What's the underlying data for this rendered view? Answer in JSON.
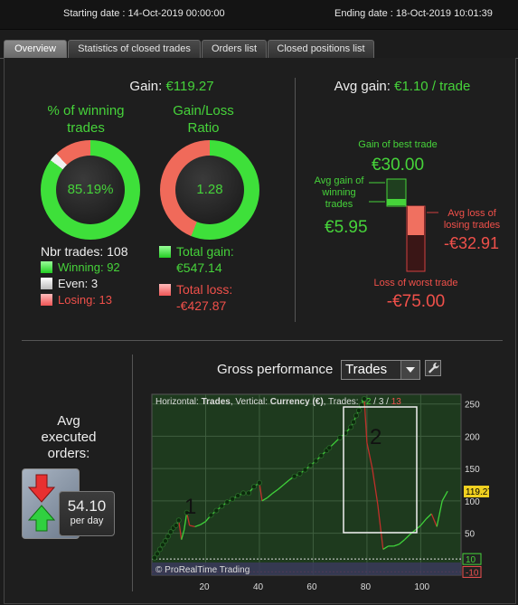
{
  "header": {
    "starting_date": "Starting date : 14-Oct-2019 00:00:00",
    "ending_date": "Ending date : 18-Oct-2019 10:01:39"
  },
  "tabs": [
    {
      "label": "Overview",
      "active": true
    },
    {
      "label": "Statistics of closed trades",
      "active": false
    },
    {
      "label": "Orders list",
      "active": false
    },
    {
      "label": "Closed positions list",
      "active": false
    }
  ],
  "overview": {
    "gain_label": "Gain:",
    "gain_value": "€119.27",
    "winning_title_1": "% of winning",
    "winning_title_2": "trades",
    "winning_pct": "85.19%",
    "winning_fraction": 0.8519,
    "even_fraction": 0.0278,
    "ratio_title_1": "Gain/Loss",
    "ratio_title_2": "Ratio",
    "ratio_value": "1.28",
    "ratio_gain_fraction": 0.561,
    "nbr_trades": "Nbr trades: 108",
    "winning": "Winning: 92",
    "even": "Even: 3",
    "losing": "Losing: 13",
    "total_gain_label": "Total gain:",
    "total_gain_value": "€547.14",
    "total_loss_label": "Total loss:",
    "total_loss_value": "-€427.87"
  },
  "avg_panel": {
    "avg_gain_label": "Avg gain:",
    "avg_gain_value": "€1.10 / trade",
    "best_trade_label": "Gain of best trade",
    "best_trade_value": "€30.00",
    "avg_win_label_1": "Avg gain of",
    "avg_win_label_2": "winning",
    "avg_win_label_3": "trades",
    "avg_win_value": "€5.95",
    "avg_loss_label_1": "Avg loss of",
    "avg_loss_label_2": "losing trades",
    "avg_loss_value": "-€32.91",
    "worst_trade_label": "Loss of worst trade",
    "worst_trade_value": "-€75.00"
  },
  "orders": {
    "title_1": "Avg",
    "title_2": "executed",
    "title_3": "orders:",
    "value": "54.10",
    "unit": "per day"
  },
  "performance": {
    "title": "Gross performance",
    "selected": "Trades",
    "info_horizontal": "Horizontal:",
    "info_horizontal_value": "Trades",
    "info_vertical": ", Vertical:",
    "info_vertical_value": "Currency (€)",
    "info_trades": ", Trades:",
    "info_win": "92",
    "info_sep1": " / ",
    "info_even": "3",
    "info_sep2": " / ",
    "info_lose": "13",
    "watermark": "© ProRealTime Trading",
    "label_1": "1",
    "label_2": "2",
    "current_value": "119.27"
  },
  "chart_data": {
    "type": "line",
    "x_ticks": [
      "20",
      "40",
      "60",
      "80",
      "100"
    ],
    "y_ticks": [
      "250",
      "200",
      "150",
      "100",
      "50"
    ],
    "y_markers": [
      "10",
      "-10"
    ],
    "xlim": [
      0,
      115
    ],
    "ylim": [
      -15,
      265
    ],
    "series": [
      {
        "x": [
          1,
          2,
          3,
          4,
          5,
          6,
          7,
          8,
          9,
          10,
          11,
          12,
          13,
          14,
          16,
          18,
          20,
          22,
          24,
          26,
          28,
          30,
          32,
          34,
          36,
          38,
          40,
          41,
          43,
          45,
          47,
          49,
          51,
          53,
          55,
          57,
          59,
          61,
          63,
          65,
          66,
          68,
          70,
          72,
          74,
          75,
          76,
          77,
          78,
          79,
          80,
          82,
          84,
          86,
          88,
          90,
          92,
          94,
          96,
          98,
          100,
          102,
          104,
          106,
          108,
          110
        ],
        "y": [
          12,
          18,
          25,
          32,
          38,
          45,
          52,
          58,
          62,
          70,
          40,
          55,
          82,
          62,
          60,
          63,
          68,
          78,
          85,
          92,
          98,
          103,
          108,
          112,
          112,
          122,
          128,
          100,
          105,
          112,
          118,
          125,
          132,
          138,
          142,
          148,
          155,
          162,
          170,
          178,
          182,
          190,
          198,
          205,
          214,
          222,
          232,
          240,
          248,
          258,
          190,
          150,
          95,
          25,
          30,
          30,
          33,
          40,
          48,
          55,
          62,
          72,
          80,
          60,
          100,
          115
        ],
        "winning_dot_ranges": [
          [
            1,
            10
          ],
          [
            13,
            13
          ],
          [
            22,
            40
          ],
          [
            53,
            66
          ],
          [
            70,
            79
          ]
        ]
      }
    ]
  }
}
